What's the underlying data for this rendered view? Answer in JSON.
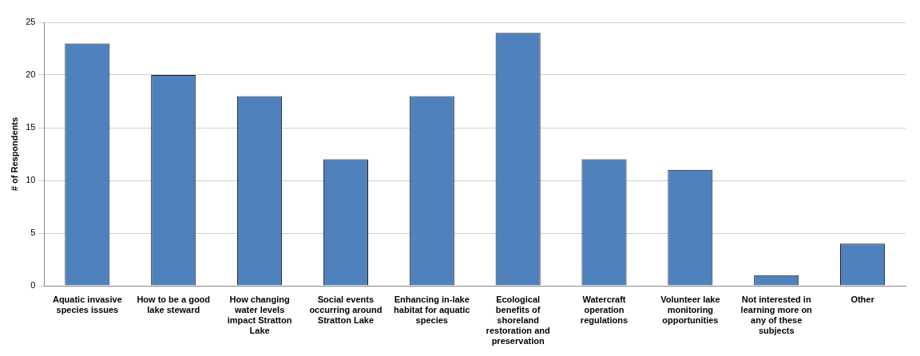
{
  "chart_data": {
    "type": "bar",
    "ylabel": "# of Respondents",
    "categories": [
      "Aquatic invasive species issues",
      "How to be a good lake steward",
      "How changing water levels impact Stratton Lake",
      "Social events occurring around Stratton Lake",
      "Enhancing in-lake habitat for aquatic species",
      "Ecological benefits of shoreland restoration and preservation",
      "Watercraft operation regulations",
      "Volunteer lake monitoring opportunities",
      "Not interested in learning more on any of these subjects",
      "Other"
    ],
    "values": [
      23,
      20,
      18,
      12,
      18,
      24,
      12,
      11,
      1,
      4
    ],
    "color": "#4f81bd",
    "ylim": [
      0,
      25
    ],
    "yticks": [
      0,
      5,
      10,
      15,
      20,
      25
    ],
    "grid": "y",
    "legend": false
  }
}
